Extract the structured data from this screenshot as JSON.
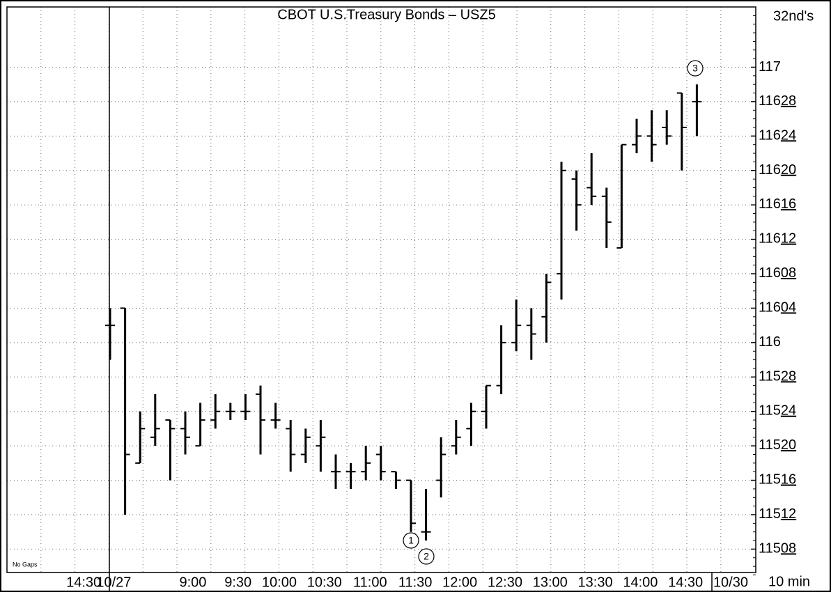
{
  "chart_data": {
    "type": "ohlc",
    "title": "CBOT U.S.Treasury Bonds – USZ5",
    "y_axis_label": "32nd's",
    "x_axis_label": "10 min",
    "annotation": "No Gaps",
    "markers": [
      "1",
      "2",
      "3"
    ],
    "categories": [
      null,
      null,
      null,
      null,
      null,
      "14:30",
      null,
      "10/27",
      null,
      null,
      null,
      null,
      "9:00",
      null,
      null,
      "9:30",
      null,
      null,
      "10:00",
      null,
      null,
      "10:30",
      null,
      null,
      "11:00",
      null,
      null,
      "11:30",
      null,
      null,
      "12:00",
      null,
      null,
      "12:30",
      null,
      null,
      "13:00",
      null,
      null,
      "13:30",
      null,
      null,
      "14:00",
      null,
      null,
      "14:30",
      null,
      null,
      "10/30"
    ],
    "open": [
      null,
      null,
      null,
      null,
      null,
      null,
      116.0625,
      116.125,
      115.5625,
      115.65625,
      115.71875,
      115.6875,
      115.625,
      115.71875,
      115.75,
      115.75,
      115.8125,
      115.71875,
      115.6875,
      115.59375,
      115.625,
      115.53125,
      115.53125,
      115.53125,
      115.59375,
      115.53125,
      115.5,
      115.3125,
      115.5,
      115.625,
      115.6875,
      115.75,
      115.84375,
      116,
      116.0625,
      116.09375,
      116.25,
      116.59375,
      116.5625,
      116.53125,
      116.34375,
      116.71875,
      116.75,
      116.78125,
      116.90625,
      116.875,
      null,
      null,
      null
    ],
    "high": [
      null,
      null,
      null,
      null,
      null,
      null,
      116.125,
      116.125,
      115.75,
      115.8125,
      115.71875,
      115.75,
      115.78125,
      115.8125,
      115.78125,
      115.8125,
      115.84375,
      115.78125,
      115.71875,
      115.6875,
      115.71875,
      115.59375,
      115.5625,
      115.625,
      115.625,
      115.53125,
      115.5,
      115.46875,
      115.65625,
      115.71875,
      115.78125,
      115.84375,
      116.0625,
      116.15625,
      116.125,
      116.25,
      116.65625,
      116.625,
      116.6875,
      116.5625,
      116.71875,
      116.8125,
      116.84375,
      116.84375,
      116.90625,
      116.9375,
      null,
      null,
      null
    ],
    "low": [
      null,
      null,
      null,
      null,
      null,
      null,
      115.9375,
      115.375,
      115.5625,
      115.625,
      115.5,
      115.59375,
      115.625,
      115.6875,
      115.71875,
      115.71875,
      115.59375,
      115.6875,
      115.53125,
      115.5625,
      115.53125,
      115.46875,
      115.46875,
      115.5,
      115.5,
      115.46875,
      115.3125,
      115.28125,
      115.4375,
      115.59375,
      115.625,
      115.6875,
      115.8125,
      115.96875,
      115.9375,
      116,
      116.15625,
      116.40625,
      116.5,
      116.34375,
      116.34375,
      116.6875,
      116.65625,
      116.71875,
      116.625,
      116.75,
      null,
      null,
      null
    ],
    "close": [
      null,
      null,
      null,
      null,
      null,
      null,
      116.0625,
      115.59375,
      115.6875,
      115.6875,
      115.6875,
      115.65625,
      115.71875,
      115.75,
      115.75,
      115.75,
      115.71875,
      115.71875,
      115.59375,
      115.65625,
      115.65625,
      115.53125,
      115.53125,
      115.5625,
      115.53125,
      115.5,
      115.34375,
      115.3125,
      115.59375,
      115.65625,
      115.75,
      115.84375,
      116,
      116.0625,
      116.03125,
      116.21875,
      116.625,
      116.5,
      116.53125,
      116.4375,
      116.71875,
      116.75,
      116.71875,
      116.75,
      116.78125,
      116.875,
      null,
      null,
      null
    ],
    "color": "#000000",
    "ylim": [
      115.15625,
      117.21875
    ],
    "yticks": [
      {
        "value": 115.25,
        "label": "11508"
      },
      {
        "value": 115.375,
        "label": "11512"
      },
      {
        "value": 115.5,
        "label": "11516"
      },
      {
        "value": 115.625,
        "label": "11520"
      },
      {
        "value": 115.75,
        "label": "11524"
      },
      {
        "value": 115.875,
        "label": "11528"
      },
      116,
      {
        "value": 116.125,
        "label": "11604"
      },
      {
        "value": 116.25,
        "label": "11608"
      },
      {
        "value": 116.375,
        "label": "11612"
      },
      {
        "value": 116.5,
        "label": "11616"
      },
      {
        "value": 116.625,
        "label": "11620"
      },
      {
        "value": 116.75,
        "label": "11624"
      },
      {
        "value": 116.875,
        "label": "11628"
      },
      117
    ],
    "grid": true
  }
}
